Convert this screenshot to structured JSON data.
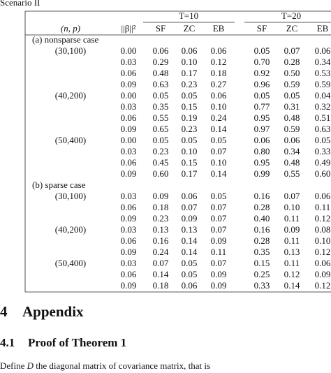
{
  "caption": "Scenario II",
  "table": {
    "header": {
      "np": "(n, p)",
      "beta": "||β||²",
      "groups": [
        "T=10",
        "T=20"
      ],
      "columns": [
        "SF",
        "ZC",
        "EB",
        "SF",
        "ZC",
        "EB"
      ]
    },
    "sections": [
      {
        "label": "(a) nonsparse case",
        "blocks": [
          {
            "label": "(30,100)",
            "rows": [
              [
                "0.00",
                "0.06",
                "0.06",
                "0.06",
                "0.05",
                "0.07",
                "0.06"
              ],
              [
                "0.03",
                "0.29",
                "0.10",
                "0.12",
                "0.70",
                "0.28",
                "0.34"
              ],
              [
                "0.06",
                "0.48",
                "0.17",
                "0.18",
                "0.92",
                "0.50",
                "0.53"
              ],
              [
                "0.09",
                "0.63",
                "0.23",
                "0.27",
                "0.96",
                "0.59",
                "0.59"
              ]
            ]
          },
          {
            "label": "(40,200)",
            "rows": [
              [
                "0.00",
                "0.05",
                "0.05",
                "0.06",
                "0.05",
                "0.05",
                "0.04"
              ],
              [
                "0.03",
                "0.35",
                "0.15",
                "0.10",
                "0.77",
                "0.31",
                "0.32"
              ],
              [
                "0.06",
                "0.55",
                "0.19",
                "0.24",
                "0.95",
                "0.48",
                "0.51"
              ],
              [
                "0.09",
                "0.65",
                "0.23",
                "0.14",
                "0.97",
                "0.59",
                "0.63"
              ]
            ]
          },
          {
            "label": "(50,400)",
            "rows": [
              [
                "0.00",
                "0.05",
                "0.05",
                "0.05",
                "0.06",
                "0.06",
                "0.05"
              ],
              [
                "0.03",
                "0.23",
                "0.10",
                "0.07",
                "0.80",
                "0.34",
                "0.33"
              ],
              [
                "0.06",
                "0.45",
                "0.15",
                "0.10",
                "0.95",
                "0.48",
                "0.49"
              ],
              [
                "0.09",
                "0.60",
                "0.17",
                "0.14",
                "0.99",
                "0.55",
                "0.60"
              ]
            ]
          }
        ]
      },
      {
        "label": "(b) sparse case",
        "blocks": [
          {
            "label": "(30,100)",
            "rows": [
              [
                "0.03",
                "0.09",
                "0.06",
                "0.05",
                "0.16",
                "0.07",
                "0.06"
              ],
              [
                "0.06",
                "0.18",
                "0.07",
                "0.07",
                "0.28",
                "0.10",
                "0.11"
              ],
              [
                "0.09",
                "0.23",
                "0.09",
                "0.07",
                "0.40",
                "0.11",
                "0.12"
              ]
            ]
          },
          {
            "label": "(40,200)",
            "rows": [
              [
                "0.03",
                "0.13",
                "0.13",
                "0.07",
                "0.16",
                "0.09",
                "0.08"
              ],
              [
                "0.06",
                "0.16",
                "0.14",
                "0.09",
                "0.28",
                "0.11",
                "0.10"
              ],
              [
                "0.09",
                "0.24",
                "0.14",
                "0.11",
                "0.35",
                "0.13",
                "0.12"
              ]
            ]
          },
          {
            "label": "(50,400)",
            "rows": [
              [
                "0.03",
                "0.07",
                "0.05",
                "0.07",
                "0.15",
                "0.11",
                "0.06"
              ],
              [
                "0.06",
                "0.14",
                "0.05",
                "0.09",
                "0.25",
                "0.12",
                "0.09"
              ],
              [
                "0.09",
                "0.18",
                "0.06",
                "0.09",
                "0.33",
                "0.14",
                "0.12"
              ]
            ]
          }
        ]
      }
    ]
  },
  "appendix": {
    "heading_number": "4",
    "heading": "Appendix",
    "subheading_number": "4.1",
    "subheading": "Proof of Theorem 1",
    "paragraph": [
      "Define ",
      "D",
      " the diagonal matrix of covariance matrix, that is"
    ]
  }
}
